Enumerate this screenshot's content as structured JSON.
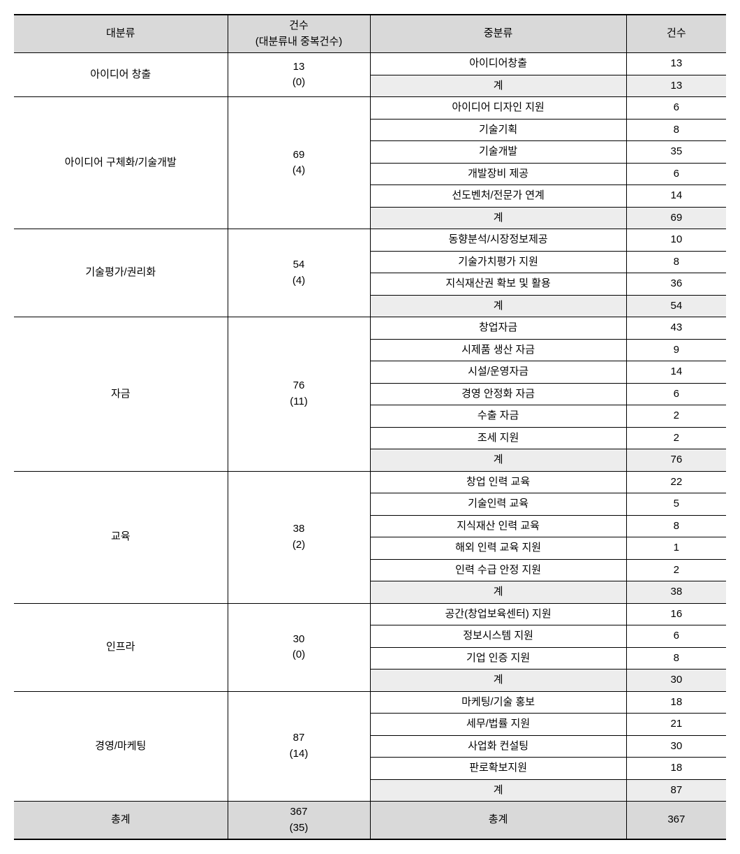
{
  "headers": {
    "major": "대분류",
    "count1": "건수\n(대분류내 중복건수)",
    "sub": "중분류",
    "count2": "건수"
  },
  "subtotal_label": "계",
  "total_label": "총계",
  "total_count1": "367\n(35)",
  "total_count2": "367",
  "groups": [
    {
      "major": "아이디어 창출",
      "count1": "13\n(0)",
      "rows": [
        {
          "sub": "아이디어창출",
          "count": "13"
        }
      ],
      "subtotal": "13"
    },
    {
      "major": "아이디어 구체화/기술개발",
      "count1": "69\n(4)",
      "rows": [
        {
          "sub": "아이디어 디자인 지원",
          "count": "6"
        },
        {
          "sub": "기술기획",
          "count": "8"
        },
        {
          "sub": "기술개발",
          "count": "35"
        },
        {
          "sub": "개발장비 제공",
          "count": "6"
        },
        {
          "sub": "선도벤처/전문가 연계",
          "count": "14"
        }
      ],
      "subtotal": "69"
    },
    {
      "major": "기술평가/권리화",
      "count1": "54\n(4)",
      "rows": [
        {
          "sub": "동향분석/시장정보제공",
          "count": "10"
        },
        {
          "sub": "기술가치평가 지원",
          "count": "8"
        },
        {
          "sub": "지식재산권 확보 및 활용",
          "count": "36"
        }
      ],
      "subtotal": "54"
    },
    {
      "major": "자금",
      "count1": "76\n(11)",
      "rows": [
        {
          "sub": "창업자금",
          "count": "43"
        },
        {
          "sub": "시제품 생산 자금",
          "count": "9"
        },
        {
          "sub": "시설/운영자금",
          "count": "14"
        },
        {
          "sub": "경영 안정화 자금",
          "count": "6"
        },
        {
          "sub": "수출 자금",
          "count": "2"
        },
        {
          "sub": "조세 지원",
          "count": "2"
        }
      ],
      "subtotal": "76"
    },
    {
      "major": "교육",
      "count1": "38\n(2)",
      "rows": [
        {
          "sub": "창업 인력 교육",
          "count": "22"
        },
        {
          "sub": "기술인력 교육",
          "count": "5"
        },
        {
          "sub": "지식재산 인력 교육",
          "count": "8"
        },
        {
          "sub": "해외 인력 교육 지원",
          "count": "1"
        },
        {
          "sub": "인력 수급 안정 지원",
          "count": "2"
        }
      ],
      "subtotal": "38"
    },
    {
      "major": "인프라",
      "count1": "30\n(0)",
      "rows": [
        {
          "sub": "공간(창업보육센터)   지원",
          "count": "16"
        },
        {
          "sub": "정보시스템 지원",
          "count": "6"
        },
        {
          "sub": "기업 인증 지원",
          "count": "8"
        }
      ],
      "subtotal": "30"
    },
    {
      "major": "경영/마케팅",
      "count1": "87\n(14)",
      "rows": [
        {
          "sub": "마케팅/기술   홍보",
          "count": "18"
        },
        {
          "sub": "세무/법률 지원",
          "count": "21"
        },
        {
          "sub": "사업화 컨설팅",
          "count": "30"
        },
        {
          "sub": "판로확보지원",
          "count": "18"
        }
      ],
      "subtotal": "87"
    }
  ],
  "styling": {
    "header_bg": "#d9d9d9",
    "subtotal_bg": "#ededed",
    "total_bg": "#d9d9d9",
    "border_color": "#000000",
    "font_size": 15
  }
}
